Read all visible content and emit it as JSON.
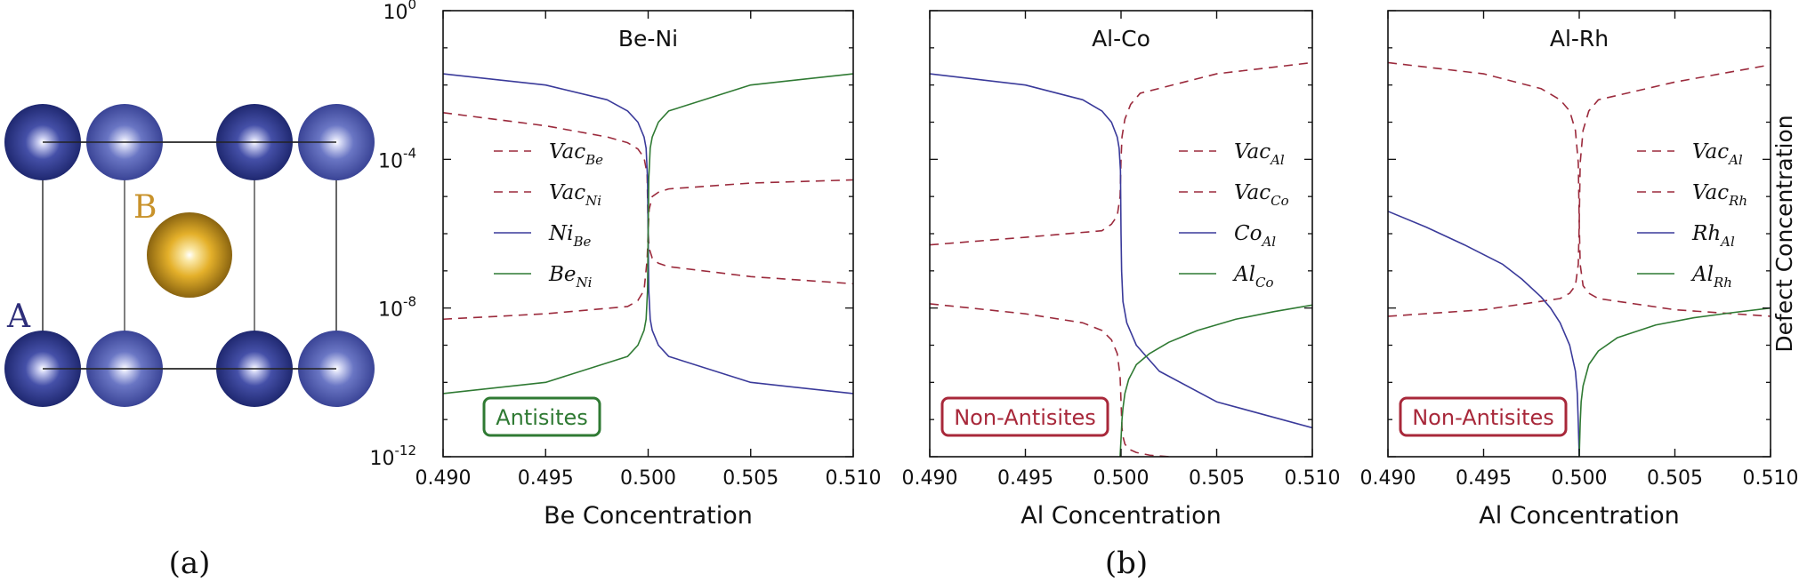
{
  "panel_a": {
    "label": "(a)",
    "site_a_label": "A",
    "site_b_label": "B",
    "colors": {
      "site_a_dark": "#2e3a8c",
      "site_a_light": "#5561b0",
      "site_b": "#d4a017",
      "label_a": "#2e2e7a",
      "label_b": "#c8922a"
    }
  },
  "panel_b_label": "(b)",
  "y_axis_right_label": "Defect Concentration",
  "colors": {
    "vac": "#9b2a3c",
    "antisite_blue": "#3a3a9a",
    "antisite_green": "#2f7a33",
    "badge_green": "#2f7a33",
    "badge_red": "#a8283a"
  },
  "chart_data": [
    {
      "type": "line",
      "title": "Be-Ni",
      "xlabel": "Be Concentration",
      "ylabel": "",
      "xlim": [
        0.49,
        0.51
      ],
      "ylim": [
        1e-12,
        1
      ],
      "yscale": "log",
      "xticks": [
        "0.490",
        "0.495",
        "0.500",
        "0.505",
        "0.510"
      ],
      "yticks": [
        "10^0",
        "10^-4",
        "10^-8",
        "10^-12"
      ],
      "badge": "Antisites",
      "badge_color": "green",
      "legend_position": "center-left",
      "series": [
        {
          "name": "Vac_Be",
          "label_main": "Vac",
          "label_sub": "Be",
          "style": "dashed",
          "color": "vac",
          "x": [
            0.49,
            0.495,
            0.498,
            0.499,
            0.4995,
            0.4998,
            0.49995,
            0.5,
            0.50005,
            0.5002,
            0.5005,
            0.501,
            0.505,
            0.51
          ],
          "y": [
            0.0018,
            0.0008,
            0.0004,
            0.00028,
            0.00019,
            0.00011,
            4e-05,
            1.1e-06,
            4e-07,
            2.2e-07,
            1.6e-07,
            1.3e-07,
            7e-08,
            4.5e-08
          ]
        },
        {
          "name": "Vac_Ni",
          "label_main": "Vac",
          "label_sub": "Ni",
          "style": "dashed",
          "color": "vac",
          "x": [
            0.49,
            0.495,
            0.499,
            0.4995,
            0.4998,
            0.49995,
            0.5,
            0.50005,
            0.5002,
            0.5005,
            0.501,
            0.505,
            0.51
          ],
          "y": [
            5e-09,
            7e-09,
            1.1e-08,
            1.6e-08,
            3e-08,
            2e-07,
            1.1e-06,
            4.5e-06,
            1e-05,
            1.3e-05,
            1.6e-05,
            2.3e-05,
            2.8e-05
          ]
        },
        {
          "name": "Ni_Be",
          "label_main": "Ni",
          "label_sub": "Be",
          "style": "solid",
          "color": "antisite_blue",
          "x": [
            0.49,
            0.495,
            0.498,
            0.499,
            0.4995,
            0.4998,
            0.4999,
            0.49997,
            0.5,
            0.50003,
            0.5001,
            0.5002,
            0.5005,
            0.501,
            0.505,
            0.51
          ],
          "y": [
            0.02,
            0.01,
            0.004,
            0.002,
            0.001,
            0.0004,
            0.0002,
            3e-05,
            1e-06,
            3e-08,
            5e-09,
            2.5e-09,
            1e-09,
            5e-10,
            1e-10,
            5e-11
          ]
        },
        {
          "name": "Be_Ni",
          "label_main": "Be",
          "label_sub": "Ni",
          "style": "solid",
          "color": "antisite_green",
          "x": [
            0.49,
            0.495,
            0.499,
            0.4995,
            0.4998,
            0.4999,
            0.49997,
            0.5,
            0.50003,
            0.5001,
            0.5002,
            0.5005,
            0.501,
            0.505,
            0.51
          ],
          "y": [
            5e-11,
            1e-10,
            5e-10,
            1e-09,
            2.5e-09,
            5e-09,
            3e-08,
            1e-06,
            3e-05,
            0.0002,
            0.0004,
            0.001,
            0.002,
            0.01,
            0.02
          ]
        }
      ]
    },
    {
      "type": "line",
      "title": "Al-Co",
      "xlabel": "Al Concentration",
      "ylabel": "",
      "xlim": [
        0.49,
        0.51
      ],
      "ylim": [
        1e-12,
        1
      ],
      "yscale": "log",
      "xticks": [
        "0.490",
        "0.495",
        "0.500",
        "0.505",
        "0.510"
      ],
      "badge": "Non-Antisites",
      "badge_color": "red",
      "legend_position": "center-right",
      "series": [
        {
          "name": "Vac_Al",
          "label_main": "Vac",
          "label_sub": "Al",
          "style": "dashed",
          "color": "vac",
          "x": [
            0.49,
            0.495,
            0.499,
            0.4995,
            0.4998,
            0.49995,
            0.5,
            0.50005,
            0.5002,
            0.5005,
            0.501,
            0.505,
            0.51
          ],
          "y": [
            5e-07,
            8e-07,
            1.2e-06,
            1.8e-06,
            3e-06,
            1e-05,
            0.0001,
            0.0004,
            0.0012,
            0.003,
            0.006,
            0.02,
            0.04
          ]
        },
        {
          "name": "Vac_Co",
          "label_main": "Vac",
          "label_sub": "Co",
          "style": "dashed",
          "color": "vac",
          "x": [
            0.49,
            0.495,
            0.498,
            0.499,
            0.4995,
            0.4998,
            0.49995,
            0.5,
            0.50005,
            0.5001,
            0.5002,
            0.5004,
            0.5008,
            0.5015,
            0.5025
          ],
          "y": [
            1.3e-08,
            7e-09,
            4e-09,
            2.5e-09,
            1.4e-09,
            6e-10,
            1.5e-10,
            3e-11,
            6e-12,
            3.5e-12,
            2.2e-12,
            1.6e-12,
            1.3e-12,
            1.1e-12,
            1e-12
          ]
        },
        {
          "name": "Co_Al",
          "label_main": "Co",
          "label_sub": "Al",
          "style": "solid",
          "color": "antisite_blue",
          "x": [
            0.49,
            0.495,
            0.498,
            0.499,
            0.4995,
            0.4998,
            0.4999,
            0.49997,
            0.5,
            0.50003,
            0.5001,
            0.5003,
            0.5008,
            0.502,
            0.505,
            0.51
          ],
          "y": [
            0.02,
            0.01,
            0.004,
            0.002,
            0.001,
            0.0004,
            0.0002,
            5e-05,
            1e-06,
            1e-07,
            1.5e-08,
            4e-09,
            1e-09,
            2e-10,
            3e-11,
            6e-12
          ]
        },
        {
          "name": "Al_Co",
          "label_main": "Al",
          "label_sub": "Co",
          "style": "solid",
          "color": "antisite_green",
          "x": [
            0.49995,
            0.5,
            0.50005,
            0.5001,
            0.5002,
            0.5004,
            0.5008,
            0.5015,
            0.5025,
            0.504,
            0.506,
            0.508,
            0.51
          ],
          "y": [
            1e-12,
            3e-12,
            1e-11,
            2e-11,
            5e-11,
            1.2e-10,
            3e-10,
            6e-10,
            1.2e-09,
            2.5e-09,
            5e-09,
            8e-09,
            1.2e-08
          ]
        }
      ]
    },
    {
      "type": "line",
      "title": "Al-Rh",
      "xlabel": "Al Concentration",
      "ylabel": "Defect Concentration",
      "xlim": [
        0.49,
        0.51
      ],
      "ylim": [
        1e-12,
        1
      ],
      "yscale": "log",
      "xticks": [
        "0.490",
        "0.495",
        "0.500",
        "0.505",
        "0.510"
      ],
      "badge": "Non-Antisites",
      "badge_color": "red",
      "legend_position": "center-right",
      "series": [
        {
          "name": "Vac_Al",
          "label_main": "Vac",
          "label_sub": "Al",
          "style": "dashed",
          "color": "vac",
          "x": [
            0.49,
            0.495,
            0.498,
            0.499,
            0.4995,
            0.4998,
            0.49995,
            0.5,
            0.50005,
            0.5002,
            0.5005,
            0.501,
            0.505,
            0.51
          ],
          "y": [
            0.04,
            0.02,
            0.008,
            0.004,
            0.002,
            0.0006,
            8e-05,
            2e-06,
            1.5e-07,
            4e-08,
            2.5e-08,
            1.8e-08,
            9e-09,
            6e-09
          ]
        },
        {
          "name": "Vac_Rh",
          "label_main": "Vac",
          "label_sub": "Rh",
          "style": "dashed",
          "color": "vac",
          "x": [
            0.49,
            0.495,
            0.499,
            0.4995,
            0.4998,
            0.49995,
            0.5,
            0.50005,
            0.5002,
            0.5005,
            0.501,
            0.505,
            0.51
          ],
          "y": [
            6e-09,
            9e-09,
            1.8e-08,
            2.5e-08,
            4e-08,
            1.5e-07,
            2e-06,
            8e-05,
            0.0006,
            0.002,
            0.004,
            0.012,
            0.035
          ]
        },
        {
          "name": "Rh_Al",
          "label_main": "Rh",
          "label_sub": "Al",
          "style": "solid",
          "color": "antisite_blue",
          "x": [
            0.49,
            0.492,
            0.494,
            0.496,
            0.497,
            0.498,
            0.4985,
            0.499,
            0.4995,
            0.4998,
            0.4999,
            0.49995,
            0.5
          ],
          "y": [
            4e-06,
            1.5e-06,
            5e-07,
            1.5e-07,
            6e-08,
            2e-08,
            1e-08,
            4e-09,
            1e-09,
            2e-10,
            5e-11,
            8e-12,
            1e-12
          ]
        },
        {
          "name": "Al_Rh",
          "label_main": "Al",
          "label_sub": "Rh",
          "style": "solid",
          "color": "antisite_green",
          "x": [
            0.5,
            0.50005,
            0.5001,
            0.5002,
            0.5005,
            0.501,
            0.502,
            0.504,
            0.506,
            0.508,
            0.51
          ],
          "y": [
            1e-12,
            8e-12,
            3e-11,
            8e-11,
            3e-10,
            7e-10,
            1.6e-09,
            3.5e-09,
            5.5e-09,
            7.5e-09,
            1e-08
          ]
        }
      ]
    }
  ]
}
